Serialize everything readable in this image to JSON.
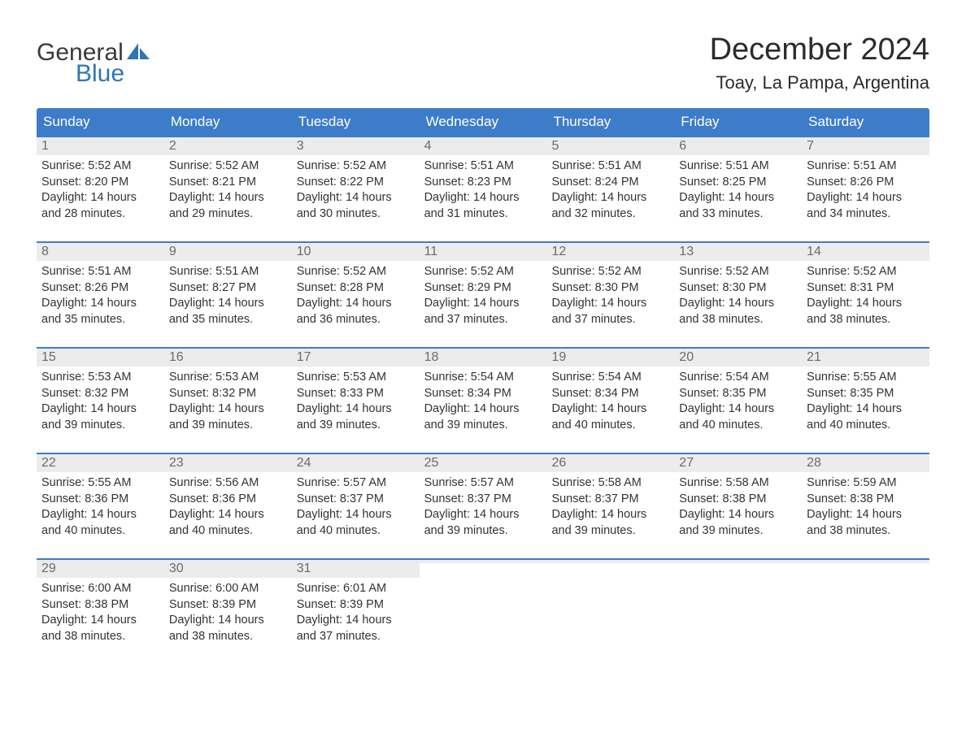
{
  "logo": {
    "word1": "General",
    "word2": "Blue",
    "text_color": "#3a3a3a",
    "blue_color": "#2e75b6",
    "sail_color": "#2e75b6"
  },
  "title": {
    "month": "December 2024",
    "location": "Toay, La Pampa, Argentina",
    "month_fontsize": 38,
    "location_fontsize": 22,
    "text_color": "#2b2b2b"
  },
  "styles": {
    "header_bg": "#3d7cc9",
    "header_text": "#ffffff",
    "daynum_bg": "#ececec",
    "daynum_color": "#6b6b6b",
    "body_text": "#333333",
    "week_border": "#3d7cc9",
    "page_bg": "#ffffff",
    "header_fontsize": 17,
    "daynum_fontsize": 16,
    "body_fontsize": 14.5
  },
  "day_headers": [
    "Sunday",
    "Monday",
    "Tuesday",
    "Wednesday",
    "Thursday",
    "Friday",
    "Saturday"
  ],
  "weeks": [
    [
      {
        "n": "1",
        "sunrise": "Sunrise: 5:52 AM",
        "sunset": "Sunset: 8:20 PM",
        "d1": "Daylight: 14 hours",
        "d2": "and 28 minutes."
      },
      {
        "n": "2",
        "sunrise": "Sunrise: 5:52 AM",
        "sunset": "Sunset: 8:21 PM",
        "d1": "Daylight: 14 hours",
        "d2": "and 29 minutes."
      },
      {
        "n": "3",
        "sunrise": "Sunrise: 5:52 AM",
        "sunset": "Sunset: 8:22 PM",
        "d1": "Daylight: 14 hours",
        "d2": "and 30 minutes."
      },
      {
        "n": "4",
        "sunrise": "Sunrise: 5:51 AM",
        "sunset": "Sunset: 8:23 PM",
        "d1": "Daylight: 14 hours",
        "d2": "and 31 minutes."
      },
      {
        "n": "5",
        "sunrise": "Sunrise: 5:51 AM",
        "sunset": "Sunset: 8:24 PM",
        "d1": "Daylight: 14 hours",
        "d2": "and 32 minutes."
      },
      {
        "n": "6",
        "sunrise": "Sunrise: 5:51 AM",
        "sunset": "Sunset: 8:25 PM",
        "d1": "Daylight: 14 hours",
        "d2": "and 33 minutes."
      },
      {
        "n": "7",
        "sunrise": "Sunrise: 5:51 AM",
        "sunset": "Sunset: 8:26 PM",
        "d1": "Daylight: 14 hours",
        "d2": "and 34 minutes."
      }
    ],
    [
      {
        "n": "8",
        "sunrise": "Sunrise: 5:51 AM",
        "sunset": "Sunset: 8:26 PM",
        "d1": "Daylight: 14 hours",
        "d2": "and 35 minutes."
      },
      {
        "n": "9",
        "sunrise": "Sunrise: 5:51 AM",
        "sunset": "Sunset: 8:27 PM",
        "d1": "Daylight: 14 hours",
        "d2": "and 35 minutes."
      },
      {
        "n": "10",
        "sunrise": "Sunrise: 5:52 AM",
        "sunset": "Sunset: 8:28 PM",
        "d1": "Daylight: 14 hours",
        "d2": "and 36 minutes."
      },
      {
        "n": "11",
        "sunrise": "Sunrise: 5:52 AM",
        "sunset": "Sunset: 8:29 PM",
        "d1": "Daylight: 14 hours",
        "d2": "and 37 minutes."
      },
      {
        "n": "12",
        "sunrise": "Sunrise: 5:52 AM",
        "sunset": "Sunset: 8:30 PM",
        "d1": "Daylight: 14 hours",
        "d2": "and 37 minutes."
      },
      {
        "n": "13",
        "sunrise": "Sunrise: 5:52 AM",
        "sunset": "Sunset: 8:30 PM",
        "d1": "Daylight: 14 hours",
        "d2": "and 38 minutes."
      },
      {
        "n": "14",
        "sunrise": "Sunrise: 5:52 AM",
        "sunset": "Sunset: 8:31 PM",
        "d1": "Daylight: 14 hours",
        "d2": "and 38 minutes."
      }
    ],
    [
      {
        "n": "15",
        "sunrise": "Sunrise: 5:53 AM",
        "sunset": "Sunset: 8:32 PM",
        "d1": "Daylight: 14 hours",
        "d2": "and 39 minutes."
      },
      {
        "n": "16",
        "sunrise": "Sunrise: 5:53 AM",
        "sunset": "Sunset: 8:32 PM",
        "d1": "Daylight: 14 hours",
        "d2": "and 39 minutes."
      },
      {
        "n": "17",
        "sunrise": "Sunrise: 5:53 AM",
        "sunset": "Sunset: 8:33 PM",
        "d1": "Daylight: 14 hours",
        "d2": "and 39 minutes."
      },
      {
        "n": "18",
        "sunrise": "Sunrise: 5:54 AM",
        "sunset": "Sunset: 8:34 PM",
        "d1": "Daylight: 14 hours",
        "d2": "and 39 minutes."
      },
      {
        "n": "19",
        "sunrise": "Sunrise: 5:54 AM",
        "sunset": "Sunset: 8:34 PM",
        "d1": "Daylight: 14 hours",
        "d2": "and 40 minutes."
      },
      {
        "n": "20",
        "sunrise": "Sunrise: 5:54 AM",
        "sunset": "Sunset: 8:35 PM",
        "d1": "Daylight: 14 hours",
        "d2": "and 40 minutes."
      },
      {
        "n": "21",
        "sunrise": "Sunrise: 5:55 AM",
        "sunset": "Sunset: 8:35 PM",
        "d1": "Daylight: 14 hours",
        "d2": "and 40 minutes."
      }
    ],
    [
      {
        "n": "22",
        "sunrise": "Sunrise: 5:55 AM",
        "sunset": "Sunset: 8:36 PM",
        "d1": "Daylight: 14 hours",
        "d2": "and 40 minutes."
      },
      {
        "n": "23",
        "sunrise": "Sunrise: 5:56 AM",
        "sunset": "Sunset: 8:36 PM",
        "d1": "Daylight: 14 hours",
        "d2": "and 40 minutes."
      },
      {
        "n": "24",
        "sunrise": "Sunrise: 5:57 AM",
        "sunset": "Sunset: 8:37 PM",
        "d1": "Daylight: 14 hours",
        "d2": "and 40 minutes."
      },
      {
        "n": "25",
        "sunrise": "Sunrise: 5:57 AM",
        "sunset": "Sunset: 8:37 PM",
        "d1": "Daylight: 14 hours",
        "d2": "and 39 minutes."
      },
      {
        "n": "26",
        "sunrise": "Sunrise: 5:58 AM",
        "sunset": "Sunset: 8:37 PM",
        "d1": "Daylight: 14 hours",
        "d2": "and 39 minutes."
      },
      {
        "n": "27",
        "sunrise": "Sunrise: 5:58 AM",
        "sunset": "Sunset: 8:38 PM",
        "d1": "Daylight: 14 hours",
        "d2": "and 39 minutes."
      },
      {
        "n": "28",
        "sunrise": "Sunrise: 5:59 AM",
        "sunset": "Sunset: 8:38 PM",
        "d1": "Daylight: 14 hours",
        "d2": "and 38 minutes."
      }
    ],
    [
      {
        "n": "29",
        "sunrise": "Sunrise: 6:00 AM",
        "sunset": "Sunset: 8:38 PM",
        "d1": "Daylight: 14 hours",
        "d2": "and 38 minutes."
      },
      {
        "n": "30",
        "sunrise": "Sunrise: 6:00 AM",
        "sunset": "Sunset: 8:39 PM",
        "d1": "Daylight: 14 hours",
        "d2": "and 38 minutes."
      },
      {
        "n": "31",
        "sunrise": "Sunrise: 6:01 AM",
        "sunset": "Sunset: 8:39 PM",
        "d1": "Daylight: 14 hours",
        "d2": "and 37 minutes."
      },
      {
        "empty": true
      },
      {
        "empty": true
      },
      {
        "empty": true
      },
      {
        "empty": true
      }
    ]
  ]
}
